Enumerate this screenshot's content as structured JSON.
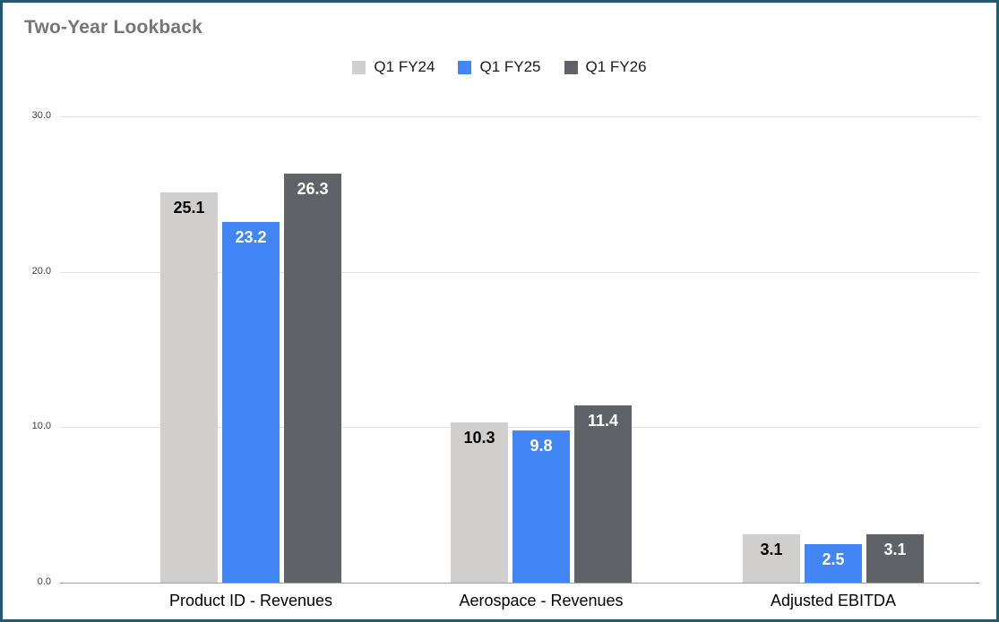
{
  "title": "Two-Year Lookback",
  "chart_data": {
    "type": "bar",
    "title": "Two-Year Lookback",
    "categories": [
      "Product ID - Revenues",
      "Aerospace - Revenues",
      "Adjusted EBITDA"
    ],
    "series": [
      {
        "name": "Q1 FY24",
        "color": "#d0cfce",
        "label_color": "#000000",
        "values": [
          25.1,
          10.3,
          3.1
        ]
      },
      {
        "name": "Q1 FY25",
        "color": "#4285f4",
        "label_color": "#ffffff",
        "values": [
          23.2,
          9.8,
          2.5
        ]
      },
      {
        "name": "Q1 FY26",
        "color": "#5f6368",
        "label_color": "#ffffff",
        "values": [
          26.3,
          11.4,
          3.1
        ]
      }
    ],
    "xlabel": "",
    "ylabel": "",
    "ylim": [
      0,
      30
    ],
    "yticks": [
      "30.0",
      "20.0",
      "10.0",
      "0.0"
    ],
    "grid": true,
    "legend_position": "top"
  },
  "colors": {
    "frame_border": "#245a70",
    "title_text": "#757575",
    "gridline": "#e3e3e3",
    "axis_line": "#9e9e9e"
  }
}
